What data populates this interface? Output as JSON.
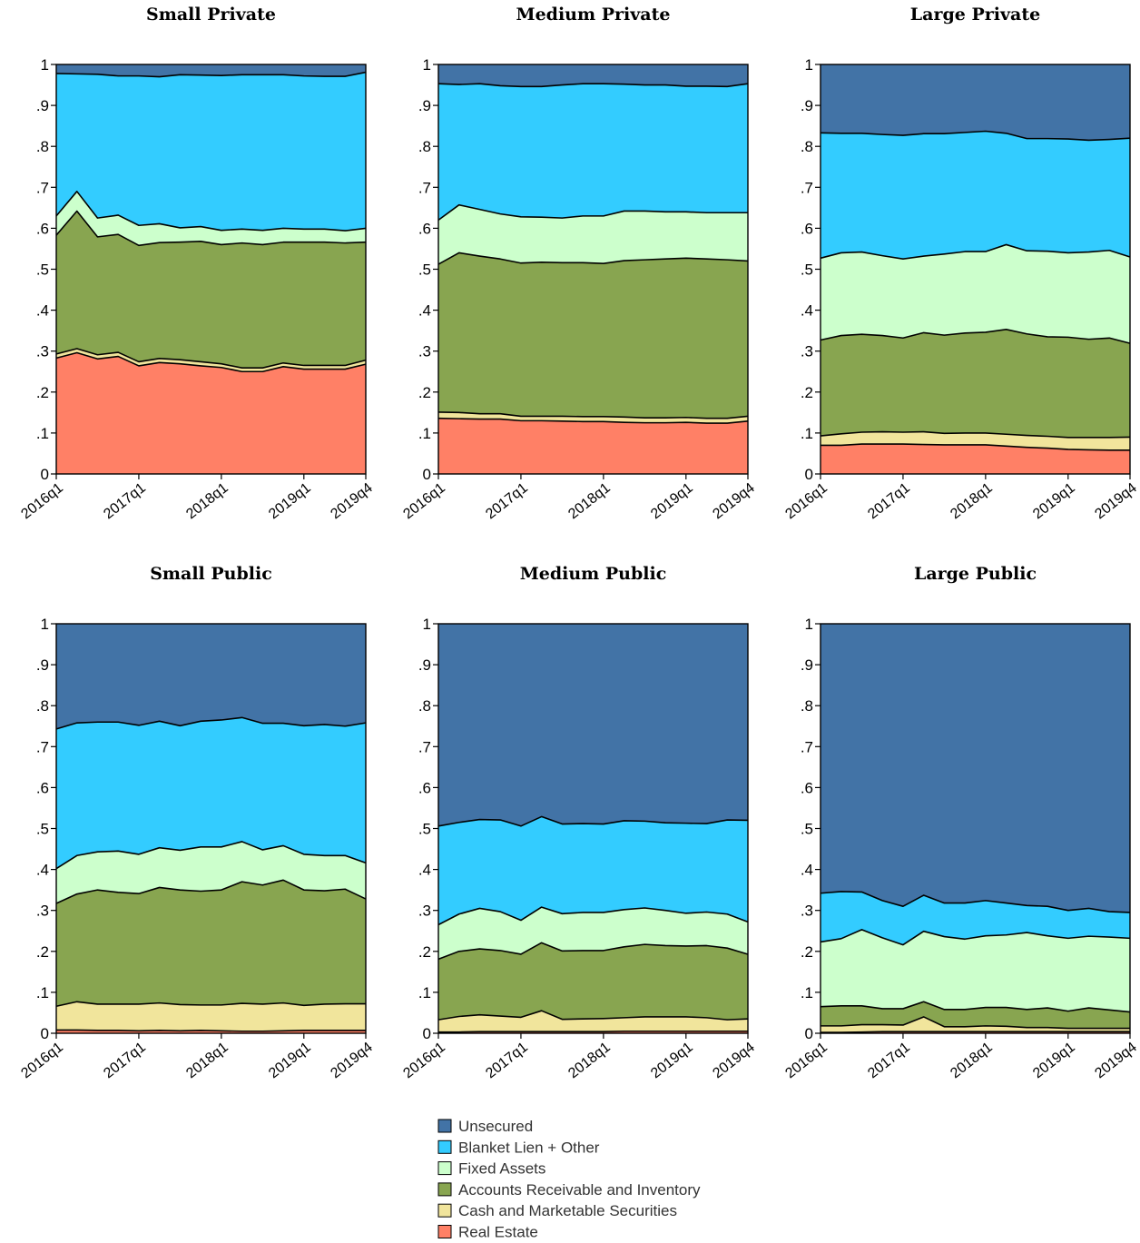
{
  "chart_data": {
    "type": "area",
    "stacked": true,
    "normalized": true,
    "quarters": [
      "2016q1",
      "2016q2",
      "2016q3",
      "2016q4",
      "2017q1",
      "2017q2",
      "2017q3",
      "2017q4",
      "2018q1",
      "2018q2",
      "2018q3",
      "2018q4",
      "2019q1",
      "2019q2",
      "2019q3",
      "2019q4"
    ],
    "x_tick_labels": [
      "2016q1",
      "2017q1",
      "2018q1",
      "2019q1",
      "2019q4"
    ],
    "y_tick_labels": [
      "0",
      ".1",
      ".2",
      ".3",
      ".4",
      ".5",
      ".6",
      ".7",
      ".8",
      ".9",
      "1"
    ],
    "ylim": [
      0,
      1
    ],
    "legend": {
      "placement": "bottom-center",
      "items": [
        {
          "key": "unsecured",
          "label": "Unsecured",
          "color": "#4273a6"
        },
        {
          "key": "blanket",
          "label": "Blanket Lien + Other",
          "color": "#33ccff"
        },
        {
          "key": "fixed",
          "label": "Fixed Assets",
          "color": "#ccffcc"
        },
        {
          "key": "ar",
          "label": "Accounts Receivable and Inventory",
          "color": "#88a550"
        },
        {
          "key": "cash",
          "label": "Cash and Marketable Securities",
          "color": "#f1e59c"
        },
        {
          "key": "re",
          "label": "Real Estate",
          "color": "#ff8066"
        }
      ]
    },
    "stack_order": [
      "re",
      "cash",
      "ar",
      "fixed",
      "blanket",
      "unsecured"
    ],
    "panels": [
      {
        "title": "Small Private",
        "cumulative": {
          "re": [
            0.283,
            0.296,
            0.281,
            0.287,
            0.264,
            0.272,
            0.269,
            0.264,
            0.26,
            0.25,
            0.25,
            0.262,
            0.256,
            0.256,
            0.256,
            0.268
          ],
          "cash": [
            0.293,
            0.306,
            0.291,
            0.297,
            0.274,
            0.282,
            0.279,
            0.274,
            0.269,
            0.259,
            0.259,
            0.271,
            0.265,
            0.265,
            0.265,
            0.278
          ],
          "ar": [
            0.583,
            0.642,
            0.579,
            0.585,
            0.558,
            0.565,
            0.566,
            0.568,
            0.56,
            0.564,
            0.56,
            0.566,
            0.566,
            0.566,
            0.564,
            0.566
          ],
          "fixed": [
            0.63,
            0.69,
            0.625,
            0.632,
            0.607,
            0.611,
            0.601,
            0.604,
            0.595,
            0.598,
            0.595,
            0.6,
            0.598,
            0.598,
            0.594,
            0.6
          ],
          "blanket": [
            0.978,
            0.977,
            0.976,
            0.972,
            0.972,
            0.97,
            0.975,
            0.974,
            0.973,
            0.975,
            0.975,
            0.975,
            0.972,
            0.971,
            0.971,
            0.981
          ]
        }
      },
      {
        "title": "Medium Private",
        "cumulative": {
          "re": [
            0.136,
            0.135,
            0.134,
            0.134,
            0.13,
            0.13,
            0.129,
            0.128,
            0.128,
            0.126,
            0.125,
            0.125,
            0.126,
            0.124,
            0.124,
            0.129
          ],
          "cash": [
            0.151,
            0.15,
            0.147,
            0.147,
            0.141,
            0.141,
            0.141,
            0.14,
            0.14,
            0.139,
            0.137,
            0.137,
            0.138,
            0.136,
            0.136,
            0.141
          ],
          "ar": [
            0.512,
            0.54,
            0.532,
            0.525,
            0.515,
            0.517,
            0.516,
            0.516,
            0.514,
            0.521,
            0.523,
            0.525,
            0.527,
            0.525,
            0.523,
            0.52
          ],
          "fixed": [
            0.62,
            0.657,
            0.646,
            0.635,
            0.628,
            0.627,
            0.625,
            0.63,
            0.63,
            0.642,
            0.642,
            0.64,
            0.64,
            0.638,
            0.638,
            0.638
          ],
          "blanket": [
            0.953,
            0.951,
            0.953,
            0.948,
            0.946,
            0.946,
            0.95,
            0.953,
            0.953,
            0.952,
            0.95,
            0.95,
            0.947,
            0.947,
            0.946,
            0.953
          ]
        }
      },
      {
        "title": "Large Private",
        "cumulative": {
          "re": [
            0.07,
            0.07,
            0.073,
            0.073,
            0.073,
            0.072,
            0.071,
            0.071,
            0.071,
            0.068,
            0.065,
            0.063,
            0.06,
            0.059,
            0.058,
            0.058
          ],
          "cash": [
            0.093,
            0.098,
            0.102,
            0.103,
            0.102,
            0.103,
            0.099,
            0.1,
            0.1,
            0.097,
            0.094,
            0.092,
            0.089,
            0.089,
            0.089,
            0.09
          ],
          "ar": [
            0.327,
            0.338,
            0.341,
            0.338,
            0.332,
            0.345,
            0.339,
            0.344,
            0.346,
            0.353,
            0.342,
            0.335,
            0.334,
            0.329,
            0.332,
            0.319
          ],
          "fixed": [
            0.527,
            0.54,
            0.542,
            0.533,
            0.525,
            0.532,
            0.537,
            0.543,
            0.543,
            0.56,
            0.545,
            0.544,
            0.54,
            0.542,
            0.546,
            0.53
          ],
          "blanket": [
            0.833,
            0.832,
            0.832,
            0.829,
            0.827,
            0.831,
            0.831,
            0.834,
            0.837,
            0.832,
            0.819,
            0.819,
            0.818,
            0.815,
            0.817,
            0.82
          ]
        }
      },
      {
        "title": "Small Public",
        "cumulative": {
          "re": [
            0.008,
            0.008,
            0.007,
            0.007,
            0.006,
            0.007,
            0.006,
            0.007,
            0.006,
            0.005,
            0.005,
            0.006,
            0.007,
            0.007,
            0.007,
            0.007
          ],
          "cash": [
            0.066,
            0.077,
            0.071,
            0.071,
            0.071,
            0.074,
            0.07,
            0.069,
            0.069,
            0.073,
            0.071,
            0.074,
            0.068,
            0.071,
            0.072,
            0.072
          ],
          "ar": [
            0.317,
            0.34,
            0.35,
            0.344,
            0.341,
            0.356,
            0.35,
            0.347,
            0.35,
            0.37,
            0.362,
            0.374,
            0.35,
            0.348,
            0.352,
            0.328
          ],
          "fixed": [
            0.402,
            0.434,
            0.443,
            0.445,
            0.437,
            0.453,
            0.447,
            0.455,
            0.455,
            0.468,
            0.448,
            0.458,
            0.437,
            0.434,
            0.434,
            0.416
          ],
          "blanket": [
            0.743,
            0.758,
            0.76,
            0.76,
            0.752,
            0.762,
            0.751,
            0.762,
            0.765,
            0.771,
            0.757,
            0.757,
            0.751,
            0.754,
            0.75,
            0.758
          ]
        }
      },
      {
        "title": "Medium Public",
        "cumulative": {
          "re": [
            0.003,
            0.003,
            0.004,
            0.004,
            0.004,
            0.004,
            0.004,
            0.004,
            0.004,
            0.005,
            0.005,
            0.005,
            0.005,
            0.005,
            0.005,
            0.005
          ],
          "cash": [
            0.033,
            0.041,
            0.045,
            0.042,
            0.039,
            0.055,
            0.034,
            0.035,
            0.036,
            0.038,
            0.04,
            0.04,
            0.04,
            0.038,
            0.033,
            0.035
          ],
          "ar": [
            0.181,
            0.2,
            0.206,
            0.202,
            0.193,
            0.221,
            0.201,
            0.202,
            0.202,
            0.211,
            0.217,
            0.214,
            0.213,
            0.214,
            0.208,
            0.193
          ],
          "fixed": [
            0.265,
            0.291,
            0.305,
            0.297,
            0.276,
            0.308,
            0.292,
            0.295,
            0.295,
            0.302,
            0.306,
            0.3,
            0.293,
            0.296,
            0.291,
            0.272
          ],
          "blanket": [
            0.506,
            0.515,
            0.522,
            0.521,
            0.506,
            0.529,
            0.511,
            0.512,
            0.511,
            0.519,
            0.518,
            0.514,
            0.513,
            0.512,
            0.521,
            0.52
          ]
        }
      },
      {
        "title": "Large Public",
        "cumulative": {
          "re": [
            0.002,
            0.002,
            0.003,
            0.004,
            0.004,
            0.004,
            0.004,
            0.004,
            0.004,
            0.004,
            0.004,
            0.004,
            0.004,
            0.004,
            0.004,
            0.004
          ],
          "cash": [
            0.018,
            0.018,
            0.021,
            0.021,
            0.02,
            0.04,
            0.016,
            0.016,
            0.018,
            0.017,
            0.014,
            0.014,
            0.012,
            0.012,
            0.012,
            0.012
          ],
          "ar": [
            0.065,
            0.067,
            0.067,
            0.06,
            0.06,
            0.077,
            0.058,
            0.058,
            0.063,
            0.063,
            0.058,
            0.062,
            0.054,
            0.062,
            0.057,
            0.052
          ],
          "fixed": [
            0.223,
            0.231,
            0.253,
            0.233,
            0.216,
            0.249,
            0.236,
            0.23,
            0.238,
            0.24,
            0.246,
            0.238,
            0.232,
            0.237,
            0.235,
            0.232
          ],
          "blanket": [
            0.342,
            0.346,
            0.345,
            0.324,
            0.31,
            0.337,
            0.318,
            0.318,
            0.324,
            0.318,
            0.312,
            0.31,
            0.3,
            0.305,
            0.297,
            0.295
          ]
        }
      }
    ]
  }
}
